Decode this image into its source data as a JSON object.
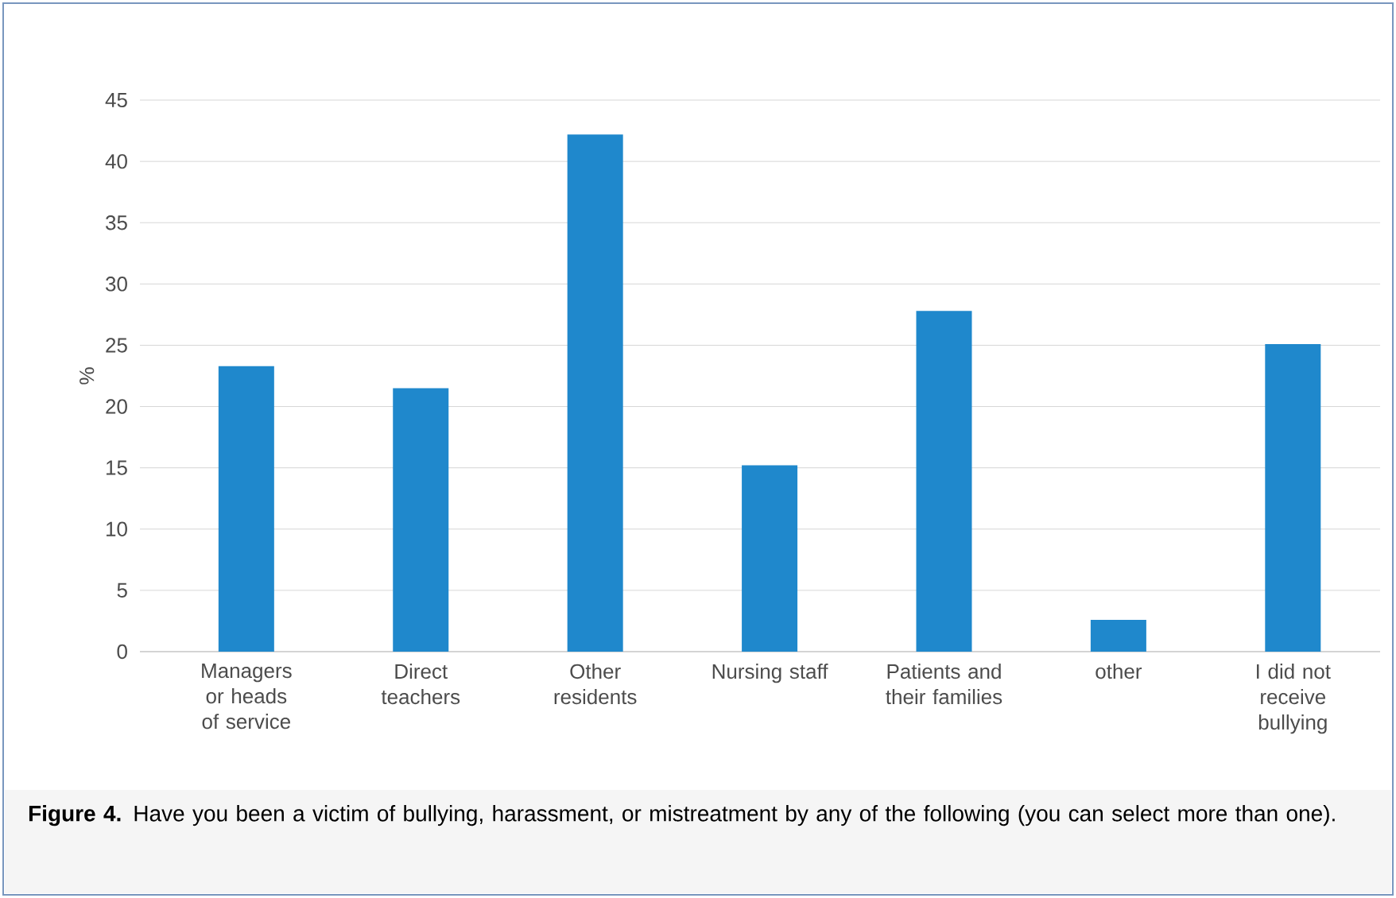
{
  "chart_data": {
    "type": "bar",
    "categories": [
      "Managers or heads of service",
      "Direct teachers",
      "Other residents",
      "Nursing staff",
      "Patients  and their families",
      "other",
      "I did not receive bullying"
    ],
    "values": [
      23.3,
      21.5,
      42.2,
      15.2,
      27.8,
      2.6,
      25.1
    ],
    "color": "#1f88cc",
    "ylabel": "%",
    "ylim": [
      0,
      45
    ],
    "yticks": [
      0,
      5,
      10,
      15,
      20,
      25,
      30,
      35,
      40,
      45
    ],
    "grid": "y",
    "annotations": [
      "**Figure 4.** Have you been a victim of bullying, harassment, or mistreatment by any of the following (you can select more than one)."
    ]
  }
}
